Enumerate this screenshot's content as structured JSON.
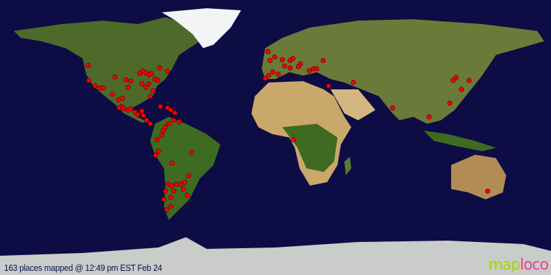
{
  "map": {
    "projection": "equirectangular",
    "ocean_color": "#0d0c44",
    "marker_color": "#ff0000",
    "markers": [
      [
        47.2,
        -122.4
      ],
      [
        37.4,
        -122
      ],
      [
        33.8,
        -117.9
      ],
      [
        32.4,
        -114.8
      ],
      [
        32.4,
        -112.5
      ],
      [
        39.6,
        -104.9
      ],
      [
        28.4,
        -106.6
      ],
      [
        37.8,
        -97.6
      ],
      [
        36.9,
        -94.5
      ],
      [
        32.9,
        -96.3
      ],
      [
        41.9,
        -88.6
      ],
      [
        43.6,
        -86.9
      ],
      [
        42.3,
        -84.6
      ],
      [
        41,
        -82.8
      ],
      [
        41.9,
        -81
      ],
      [
        45.5,
        -75.6
      ],
      [
        43.2,
        -70.6
      ],
      [
        35.1,
        -87.3
      ],
      [
        35.1,
        -82.8
      ],
      [
        32.9,
        -84.6
      ],
      [
        38.3,
        -78.8
      ],
      [
        37.4,
        -76.9
      ],
      [
        30.6,
        -80.1
      ],
      [
        27,
        -81.9
      ],
      [
        24.8,
        -102.6
      ],
      [
        25.7,
        -99.9
      ],
      [
        20.3,
        -100.4
      ],
      [
        19.4,
        -102.2
      ],
      [
        18.9,
        -99
      ],
      [
        18,
        -96.3
      ],
      [
        18.9,
        -94.5
      ],
      [
        16.7,
        -91.8
      ],
      [
        14.9,
        -90
      ],
      [
        17.3,
        -87.3
      ],
      [
        14.4,
        -86.4
      ],
      [
        11.3,
        -84.2
      ],
      [
        9,
        -81.9
      ],
      [
        19.4,
        -70.6
      ],
      [
        18,
        -68.4
      ],
      [
        16.2,
        -65.7
      ],
      [
        20.3,
        -75.2
      ],
      [
        6.8,
        -72
      ],
      [
        4.5,
        -73.4
      ],
      [
        9,
        -69.8
      ],
      [
        11.3,
        -66.6
      ],
      [
        10.4,
        -63
      ],
      [
        1.4,
        -74.3
      ],
      [
        -1.4,
        -77.4
      ],
      [
        -9,
        -76.5
      ],
      [
        -11.7,
        -78.3
      ],
      [
        -16.7,
        -67.5
      ],
      [
        -9.9,
        -54.9
      ],
      [
        -25.2,
        -56.7
      ],
      [
        -30.6,
        -70.2
      ],
      [
        -31.5,
        -68
      ],
      [
        -30.6,
        -64.8
      ],
      [
        -30.6,
        -62.1
      ],
      [
        -29.3,
        -59.4
      ],
      [
        -35.1,
        -72
      ],
      [
        -35.1,
        -66.6
      ],
      [
        -33.8,
        -60.3
      ],
      [
        -37.8,
        -57.6
      ],
      [
        -40.5,
        -72.9
      ],
      [
        -39.2,
        -68.4
      ],
      [
        -45,
        -68.4
      ],
      [
        -47.3,
        -71.1
      ],
      [
        56.3,
        -4.9
      ],
      [
        50.4,
        -3.6
      ],
      [
        52.7,
        -0.5
      ],
      [
        50.9,
        4.5
      ],
      [
        46.8,
        5.9
      ],
      [
        50.4,
        9.5
      ],
      [
        51.8,
        11.3
      ],
      [
        48.2,
        16.2
      ],
      [
        45,
        24.8
      ],
      [
        45,
        27
      ],
      [
        50.4,
        31.1
      ],
      [
        42.8,
        -1.8
      ],
      [
        38.7,
        -6.8
      ],
      [
        40.5,
        -4.5
      ],
      [
        41.4,
        1.8
      ],
      [
        45.5,
        9.5
      ],
      [
        46.4,
        14.9
      ],
      [
        43.7,
        22.1
      ],
      [
        33.8,
        34.7
      ],
      [
        36,
        50.9
      ],
      [
        19.4,
        76.5
      ],
      [
        13.5,
        100.4
      ],
      [
        22.5,
        113.9
      ],
      [
        39.2,
        118
      ],
      [
        37.4,
        116.1
      ],
      [
        31.5,
        121.5
      ],
      [
        37.4,
        126.5
      ],
      [
        -35.1,
        138.6
      ],
      [
        -1.4,
        11.7
      ]
    ]
  },
  "caption": "163 places mapped @ 12:49 pm EST Feb 24",
  "logo": {
    "part1": "map",
    "part2": "loco"
  }
}
